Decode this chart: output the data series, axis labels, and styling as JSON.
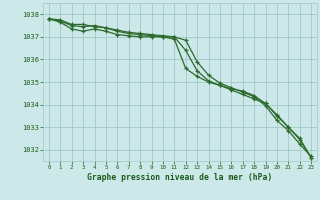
{
  "x": [
    0,
    1,
    2,
    3,
    4,
    5,
    6,
    7,
    8,
    9,
    10,
    11,
    12,
    13,
    14,
    15,
    16,
    17,
    18,
    19,
    20,
    21,
    22,
    23
  ],
  "line1": [
    1037.8,
    1037.75,
    1037.55,
    1037.55,
    1037.45,
    1037.4,
    1037.3,
    1037.2,
    1037.15,
    1037.1,
    1037.05,
    1037.0,
    1036.85,
    1035.9,
    1035.3,
    1034.95,
    1034.75,
    1034.55,
    1034.35,
    1033.95,
    1033.3,
    1032.85,
    1032.25,
    1031.7
  ],
  "line2": [
    1037.8,
    1037.7,
    1037.5,
    1037.45,
    1037.5,
    1037.4,
    1037.25,
    1037.15,
    1037.1,
    1037.05,
    1037.0,
    1037.0,
    1036.4,
    1035.5,
    1035.05,
    1034.85,
    1034.65,
    1034.45,
    1034.25,
    1034.05,
    1033.55,
    1033.0,
    1032.45,
    1031.65
  ],
  "line3": [
    1037.8,
    1037.65,
    1037.35,
    1037.25,
    1037.35,
    1037.25,
    1037.1,
    1037.05,
    1037.0,
    1037.0,
    1037.0,
    1036.9,
    1035.6,
    1035.25,
    1035.0,
    1034.85,
    1034.7,
    1034.6,
    1034.4,
    1034.05,
    1033.5,
    1033.0,
    1032.5,
    1031.65
  ],
  "line_color": "#2d6a2d",
  "bg_color": "#cce8e8",
  "grid_color": "#a0c8c8",
  "label_color": "#1a5c1a",
  "xlabel": "Graphe pression niveau de la mer (hPa)",
  "ylim": [
    1031.5,
    1038.5
  ],
  "xlim": [
    -0.5,
    23.5
  ],
  "yticks": [
    1032,
    1033,
    1034,
    1035,
    1036,
    1037,
    1038
  ],
  "xticks": [
    0,
    1,
    2,
    3,
    4,
    5,
    6,
    7,
    8,
    9,
    10,
    11,
    12,
    13,
    14,
    15,
    16,
    17,
    18,
    19,
    20,
    21,
    22,
    23
  ]
}
